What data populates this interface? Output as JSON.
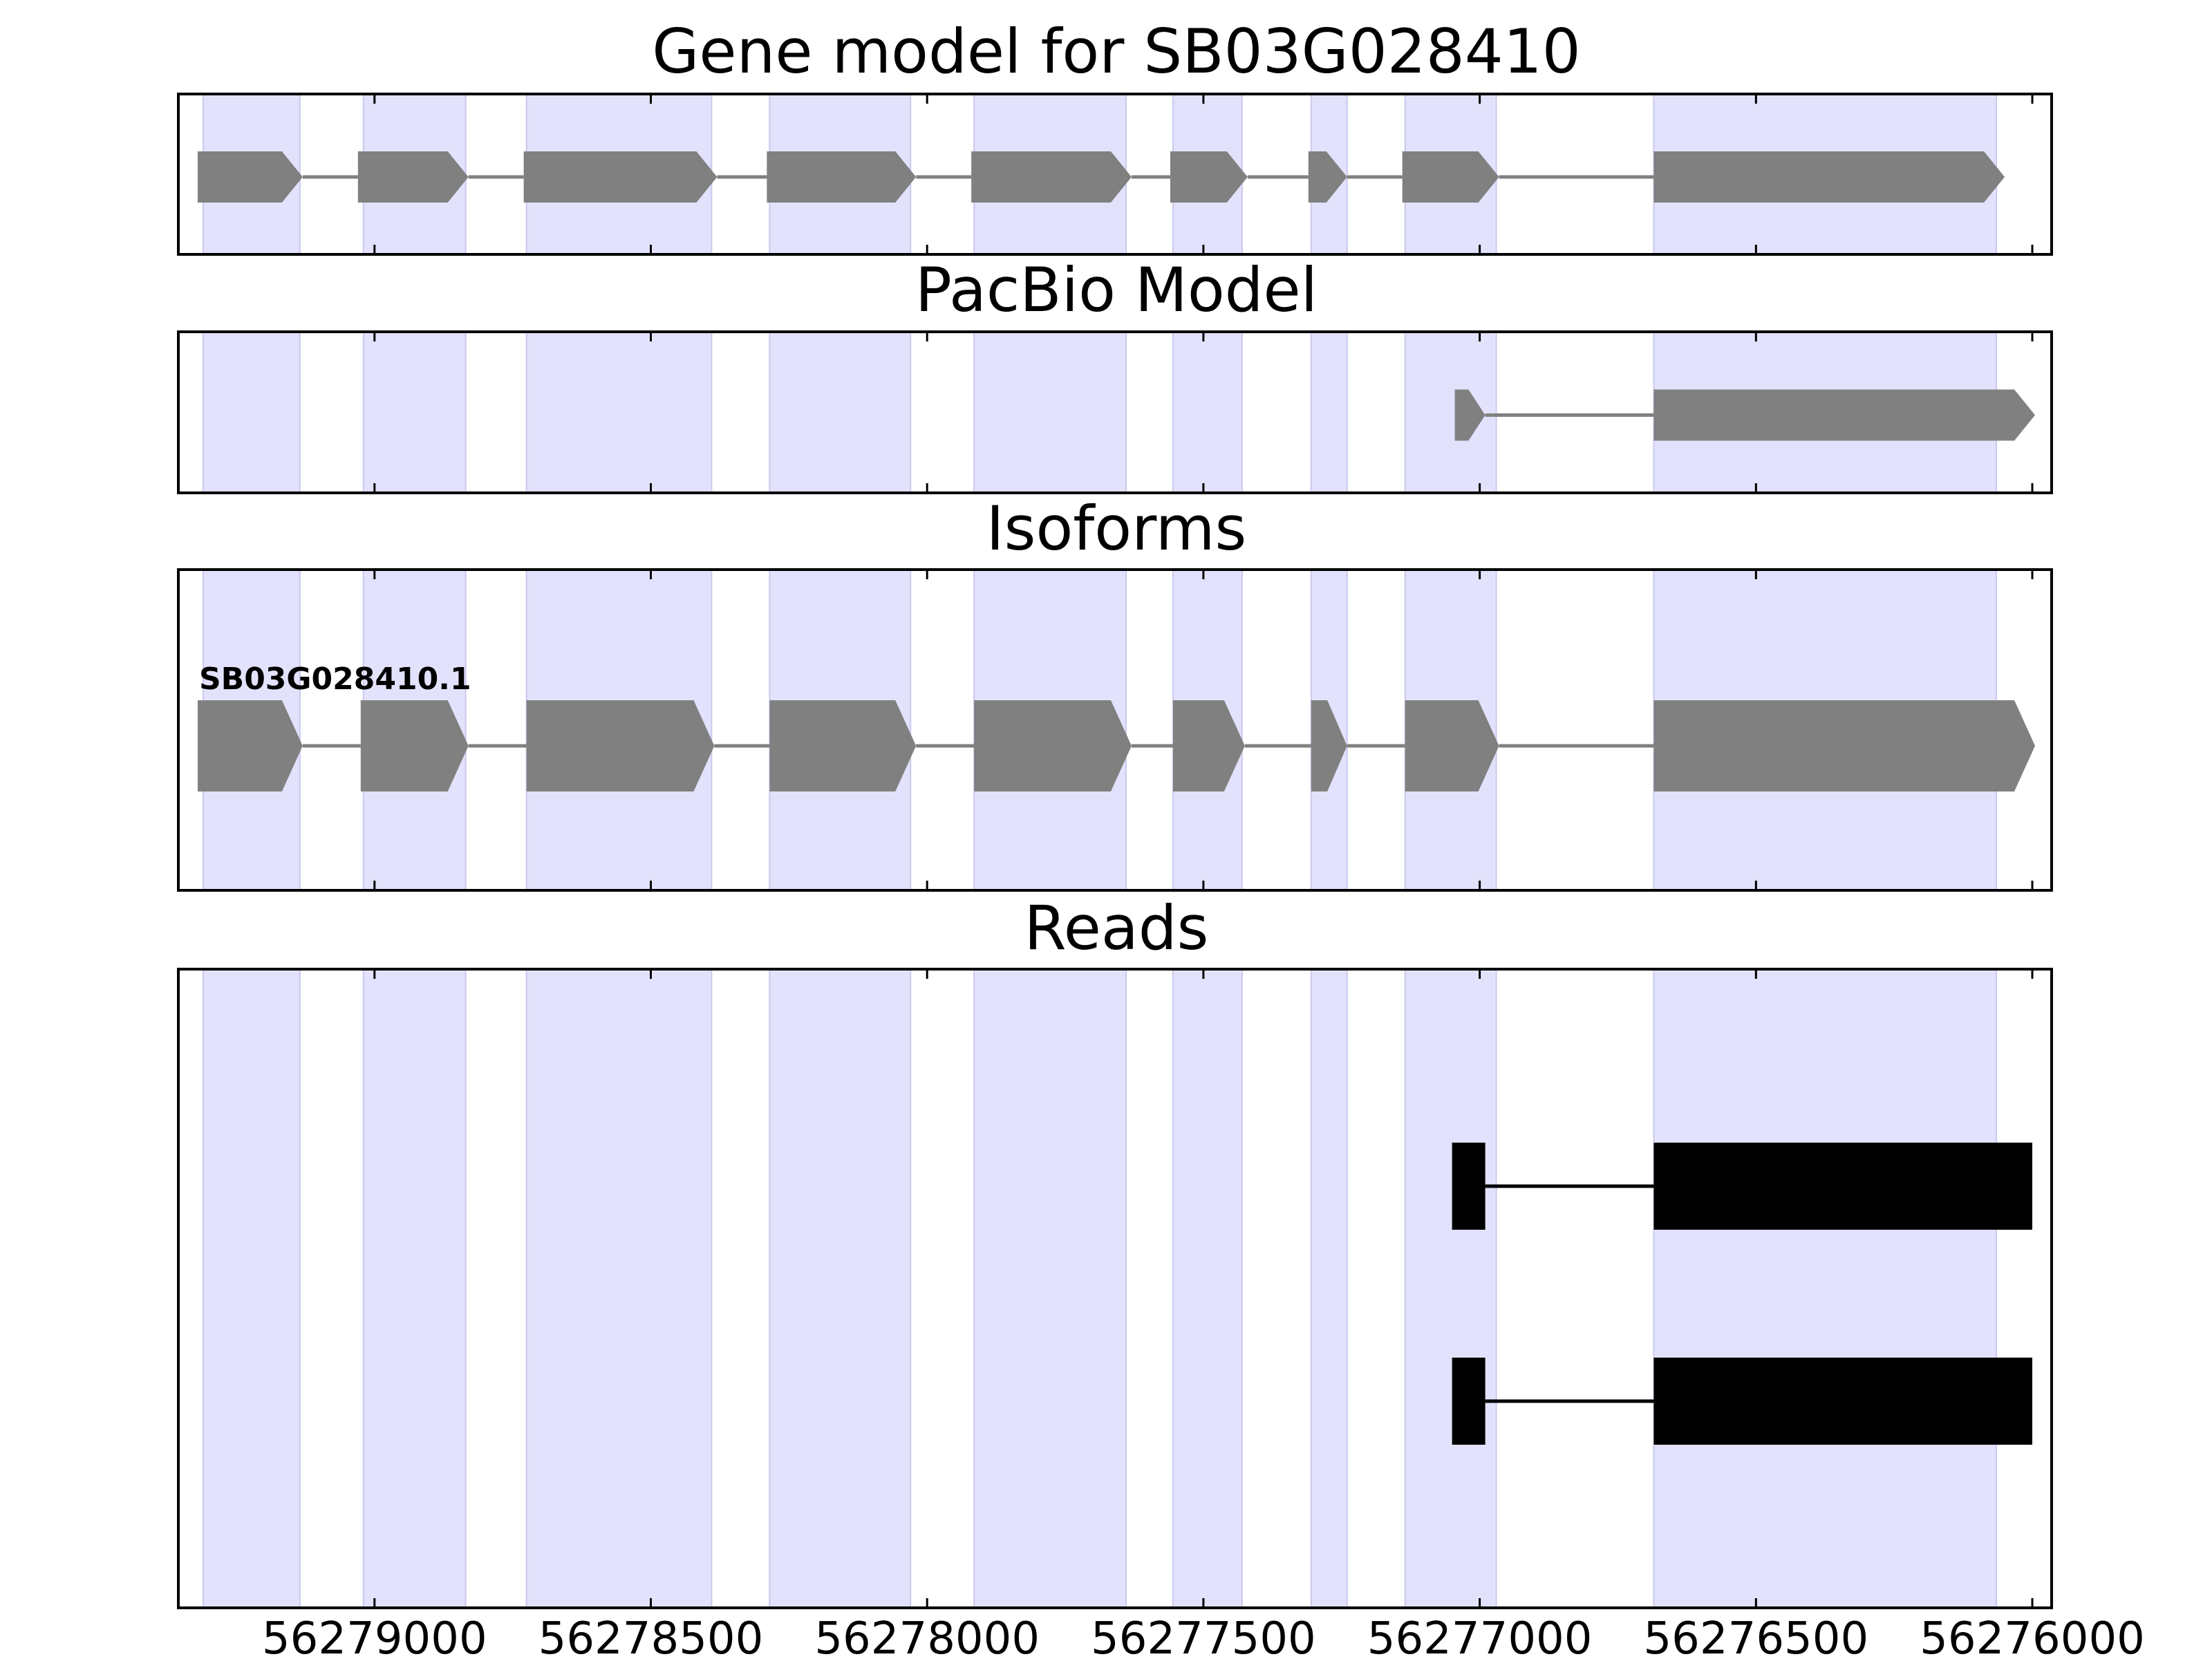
{
  "chart_data": {
    "type": "gene-structure",
    "xlim": [
      56279355,
      56275965
    ],
    "x_reversed": true,
    "x_ticks": [
      56279000,
      56278500,
      56278000,
      56277500,
      56277000,
      56276500,
      56276000
    ],
    "x_tick_labels": [
      "56279000",
      "56278500",
      "56278000",
      "56277500",
      "56277000",
      "56276500",
      "56276000"
    ],
    "exon_shading": [
      [
        56279310,
        56279135
      ],
      [
        56279020,
        56278835
      ],
      [
        56278725,
        56278390
      ],
      [
        56278285,
        56278030
      ],
      [
        56277915,
        56277640
      ],
      [
        56277555,
        56277430
      ],
      [
        56277305,
        56277240
      ],
      [
        56277135,
        56276970
      ],
      [
        56276685,
        56276065
      ]
    ],
    "panels": [
      {
        "title": "Gene model for SB03G028410",
        "features": [
          {
            "exons": [
              [
                56279320,
                56279130
              ],
              [
                56279030,
                56278830
              ],
              [
                56278730,
                56278380
              ],
              [
                56278290,
                56278020
              ],
              [
                56277920,
                56277630
              ],
              [
                56277560,
                56277420
              ],
              [
                56277310,
                56277240
              ],
              [
                56277140,
                56276965
              ],
              [
                56276685,
                56276050
              ]
            ]
          }
        ]
      },
      {
        "title": "PacBio Model",
        "features": [
          {
            "exons": [
              [
                56277045,
                56276990
              ],
              [
                56276685,
                56275995
              ]
            ]
          }
        ]
      },
      {
        "title": "Isoforms",
        "features": [
          {
            "label": "SB03G028410.1",
            "exons": [
              [
                56279320,
                56279130
              ],
              [
                56279025,
                56278830
              ],
              [
                56278725,
                56278385
              ],
              [
                56278285,
                56278020
              ],
              [
                56277915,
                56277630
              ],
              [
                56277555,
                56277425
              ],
              [
                56277305,
                56277240
              ],
              [
                56277135,
                56276965
              ],
              [
                56276685,
                56275995
              ]
            ]
          }
        ]
      },
      {
        "title": "Reads",
        "features": [
          {
            "exons": [
              [
                56277050,
                56276990
              ],
              [
                56276685,
                56276000
              ]
            ]
          },
          {
            "exons": [
              [
                56277050,
                56276990
              ],
              [
                56276685,
                56276000
              ]
            ]
          }
        ]
      }
    ],
    "colors": {
      "shading": "#e2e2fc",
      "shading_edge": "#c9c9ee",
      "exon": "#808080",
      "intron": "#808080",
      "read": "#000000",
      "axes": "#000000"
    }
  }
}
